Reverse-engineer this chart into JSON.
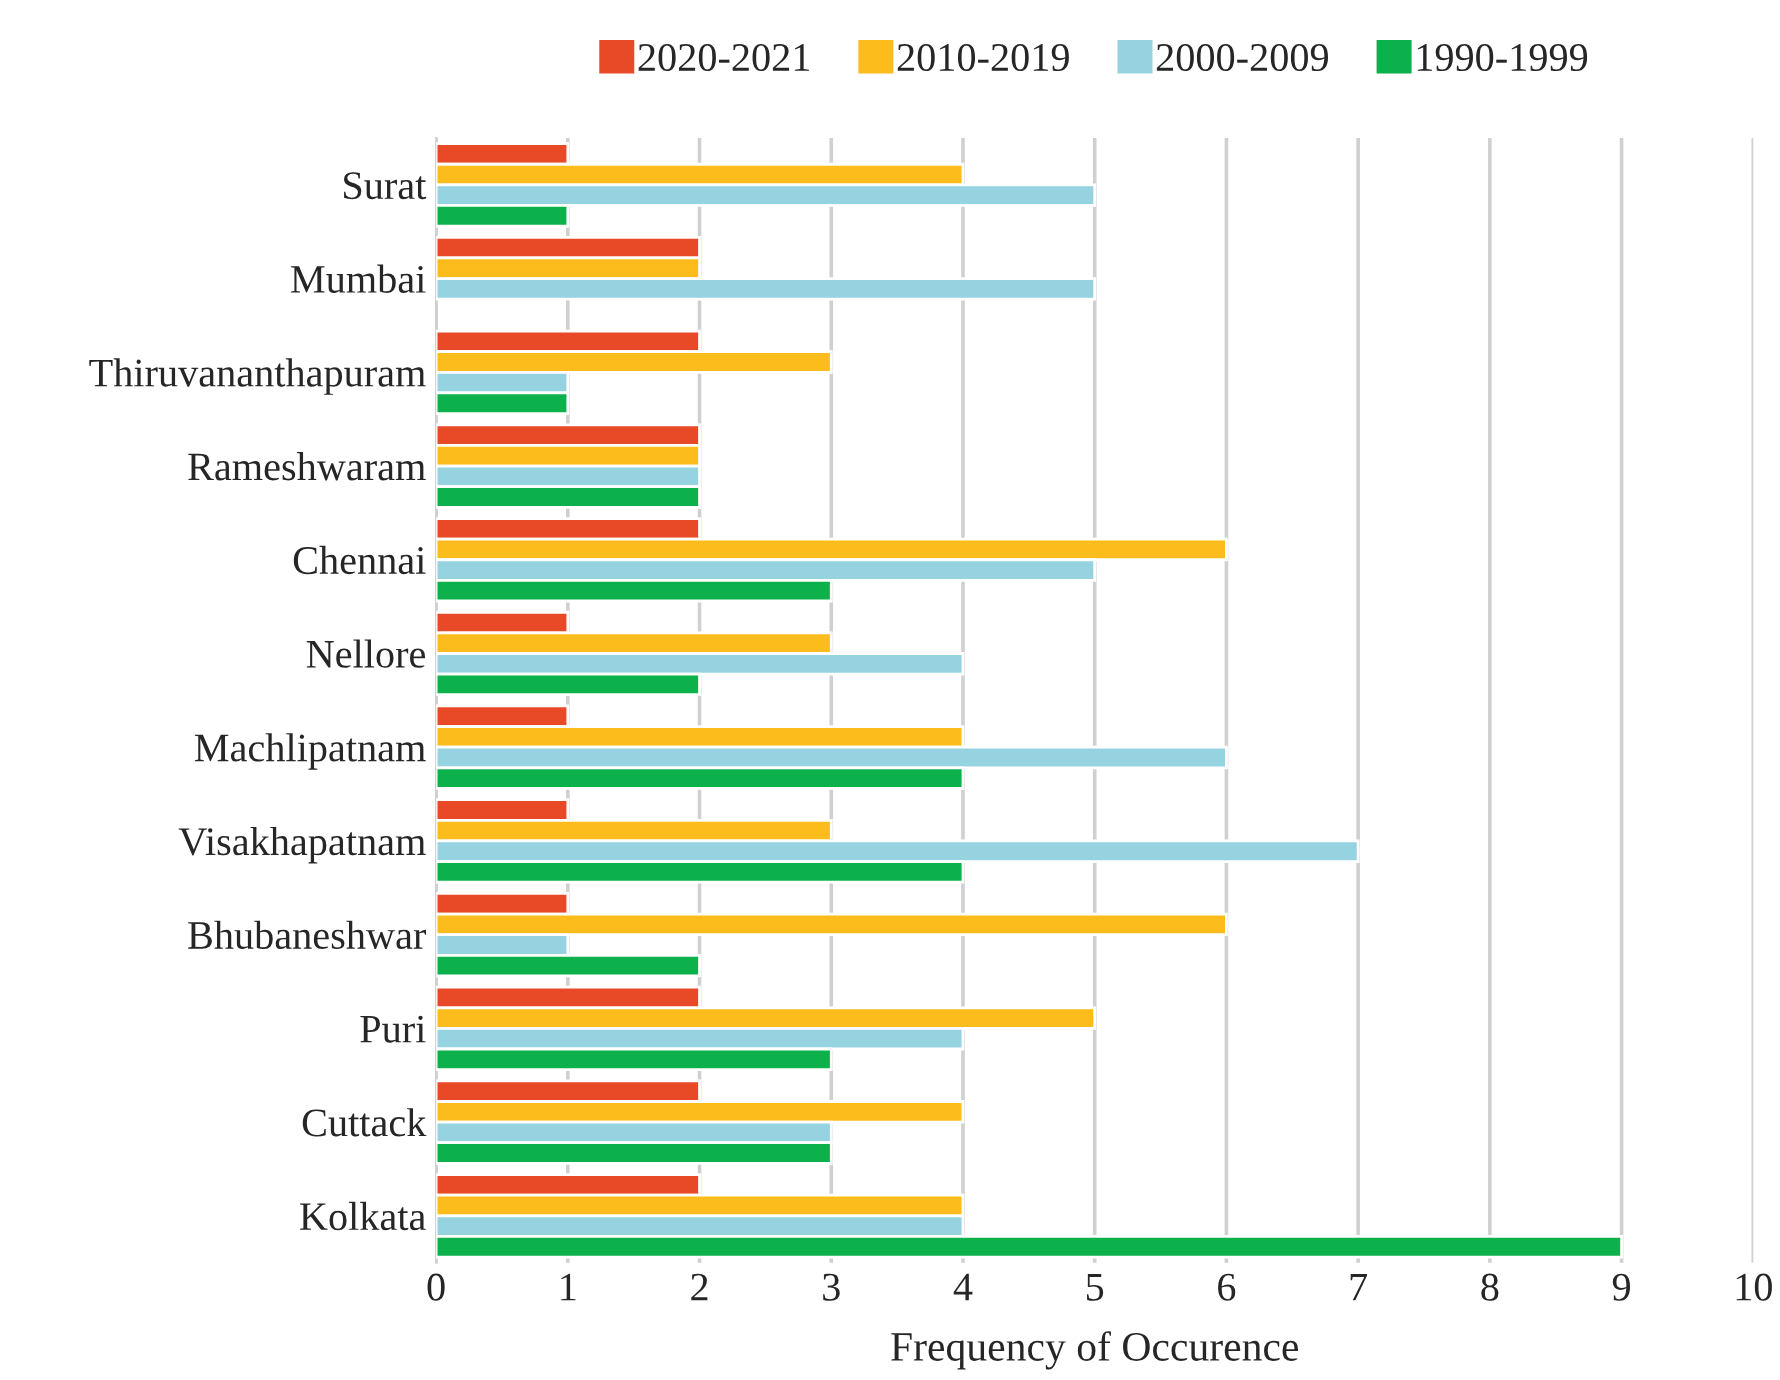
{
  "chart_data": {
    "type": "bar",
    "orientation": "horizontal",
    "xlabel": "Frequency of Occurence",
    "categories": [
      "Surat",
      "Mumbai",
      "Thiruvananthapuram",
      "Rameshwaram",
      "Chennai",
      "Nellore",
      "Machlipatnam",
      "Visakhapatnam",
      "Bhubaneshwar",
      "Puri",
      "Cuttack",
      "Kolkata"
    ],
    "series": [
      {
        "name": "2020-2021",
        "color": "#e84a27",
        "values": [
          1,
          2,
          2,
          2,
          2,
          1,
          1,
          1,
          1,
          2,
          2,
          2
        ]
      },
      {
        "name": "2010-2019",
        "color": "#fbbc1c",
        "values": [
          4,
          2,
          3,
          2,
          6,
          3,
          4,
          3,
          6,
          5,
          4,
          4
        ]
      },
      {
        "name": "2000-2009",
        "color": "#96d3e0",
        "values": [
          5,
          5,
          1,
          2,
          5,
          4,
          6,
          7,
          1,
          4,
          3,
          4
        ]
      },
      {
        "name": "1990-1999",
        "color": "#0db14b",
        "values": [
          1,
          null,
          1,
          2,
          3,
          2,
          4,
          4,
          2,
          3,
          3,
          9
        ]
      }
    ],
    "xlim": [
      0,
      10
    ],
    "xticks": [
      0,
      1,
      2,
      3,
      4,
      5,
      6,
      7,
      8,
      9,
      10
    ],
    "grid": "x",
    "legend": "top"
  }
}
